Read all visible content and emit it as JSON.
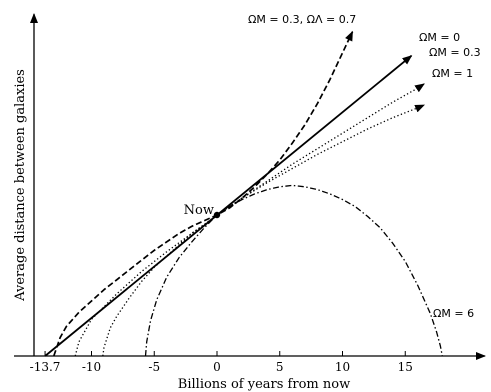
{
  "chart_data": {
    "type": "line",
    "xlabel": "Billions of years from now",
    "ylabel": "Average distance between galaxies",
    "xlim": [
      -14.5,
      21.5
    ],
    "ylim": [
      0,
      2.2
    ],
    "x_ticks": [
      {
        "value": -13.7,
        "label": "-13.7"
      },
      {
        "value": -10,
        "label": "-10"
      },
      {
        "value": -5,
        "label": "-5"
      },
      {
        "value": 0,
        "label": "0"
      },
      {
        "value": 5,
        "label": "5"
      },
      {
        "value": 10,
        "label": "10"
      },
      {
        "value": 15,
        "label": "15"
      }
    ],
    "now_point": {
      "x": 0,
      "y": 1.0,
      "label": "Now"
    },
    "series": [
      {
        "label": "ΩM = 0.3, ΩΛ = 0.7",
        "style": "dashed",
        "points": [
          [
            -13.0,
            0
          ],
          [
            -12.5,
            0.13
          ],
          [
            -12,
            0.21
          ],
          [
            -11,
            0.31
          ],
          [
            -10,
            0.39
          ],
          [
            -9,
            0.47
          ],
          [
            -8,
            0.54
          ],
          [
            -7,
            0.61
          ],
          [
            -6,
            0.68
          ],
          [
            -5,
            0.75
          ],
          [
            -4,
            0.81
          ],
          [
            -3,
            0.87
          ],
          [
            -2,
            0.92
          ],
          [
            -1,
            0.96
          ],
          [
            0,
            1.0
          ],
          [
            1,
            1.05
          ],
          [
            2,
            1.12
          ],
          [
            3,
            1.2
          ],
          [
            4,
            1.29
          ],
          [
            5,
            1.39
          ],
          [
            6,
            1.51
          ],
          [
            7,
            1.64
          ],
          [
            8,
            1.79
          ],
          [
            9,
            1.96
          ],
          [
            10,
            2.15
          ],
          [
            10.8,
            2.3
          ]
        ]
      },
      {
        "label": "ΩM = 0",
        "style": "solid",
        "points": [
          [
            -13.7,
            0
          ],
          [
            15.5,
            2.13
          ]
        ]
      },
      {
        "label": "ΩM = 0.3",
        "style": "dotted",
        "points": [
          [
            -11.3,
            0
          ],
          [
            -11,
            0.1
          ],
          [
            -10,
            0.26
          ],
          [
            -8,
            0.44
          ],
          [
            -6,
            0.6
          ],
          [
            -4,
            0.74
          ],
          [
            -2,
            0.87
          ],
          [
            0,
            1.0
          ],
          [
            2,
            1.12
          ],
          [
            4,
            1.24
          ],
          [
            6,
            1.36
          ],
          [
            8,
            1.47
          ],
          [
            10,
            1.58
          ],
          [
            12,
            1.69
          ],
          [
            14,
            1.8
          ],
          [
            16,
            1.9
          ],
          [
            16.5,
            1.93
          ]
        ]
      },
      {
        "label": "ΩM = 1",
        "style": "dotted",
        "points": [
          [
            -9.1,
            0
          ],
          [
            -9,
            0.06
          ],
          [
            -8.5,
            0.2
          ],
          [
            -8,
            0.28
          ],
          [
            -7,
            0.41
          ],
          [
            -6,
            0.53
          ],
          [
            -5,
            0.63
          ],
          [
            -4,
            0.71
          ],
          [
            -3,
            0.79
          ],
          [
            -2,
            0.87
          ],
          [
            -1,
            0.93
          ],
          [
            0,
            1.0
          ],
          [
            2,
            1.12
          ],
          [
            4,
            1.23
          ],
          [
            6,
            1.33
          ],
          [
            8,
            1.43
          ],
          [
            10,
            1.52
          ],
          [
            12,
            1.61
          ],
          [
            14,
            1.69
          ],
          [
            16,
            1.76
          ],
          [
            16.5,
            1.78
          ]
        ]
      },
      {
        "label": "ΩM = 6",
        "style": "dashdot",
        "points": [
          [
            -5.7,
            0
          ],
          [
            -5.6,
            0.1
          ],
          [
            -5.3,
            0.25
          ],
          [
            -4.8,
            0.4
          ],
          [
            -4,
            0.56
          ],
          [
            -3,
            0.7
          ],
          [
            -2,
            0.81
          ],
          [
            -1,
            0.91
          ],
          [
            0,
            1.0
          ],
          [
            1,
            1.06
          ],
          [
            2,
            1.11
          ],
          [
            3,
            1.15
          ],
          [
            4,
            1.18
          ],
          [
            5,
            1.2
          ],
          [
            6,
            1.21
          ],
          [
            7,
            1.2
          ],
          [
            8,
            1.18
          ],
          [
            9,
            1.15
          ],
          [
            10,
            1.11
          ],
          [
            11,
            1.06
          ],
          [
            12,
            0.99
          ],
          [
            13,
            0.91
          ],
          [
            14,
            0.8
          ],
          [
            15,
            0.67
          ],
          [
            16,
            0.5
          ],
          [
            17,
            0.3
          ],
          [
            17.5,
            0.17
          ],
          [
            17.8,
            0.07
          ],
          [
            17.95,
            0
          ]
        ]
      }
    ]
  }
}
